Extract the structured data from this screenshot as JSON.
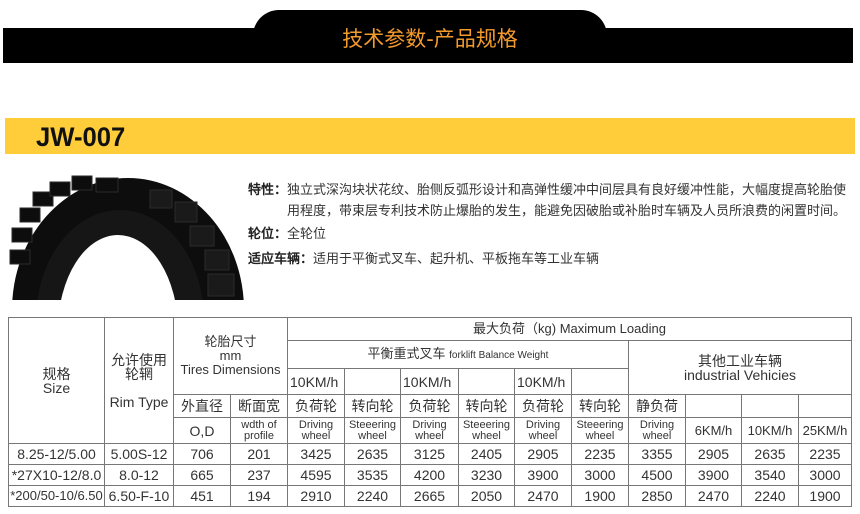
{
  "header": {
    "title": "技术参数-产品规格"
  },
  "product": {
    "model": "JW-007"
  },
  "features": [
    {
      "label": "特性：",
      "value": "独立式深沟块状花纹、胎侧反弧形设计和高弹性缓冲中间层具有良好缓冲性能，大幅度提高轮胎使用程度，带束层专利技术防止爆胎的发生，能避免因破胎或补胎时车辆及人员所浪费的闲置时间。"
    },
    {
      "label": "轮位：",
      "value": "全轮位"
    },
    {
      "label": "适应车辆：",
      "value": "适用于平衡式叉车、起升机、平板拖车等工业车辆"
    }
  ],
  "colors": {
    "header_bg": "#000000",
    "title": "#f39a2c",
    "band": "#ffcd3a"
  },
  "table": {
    "size_cn": "规格",
    "size_en": "Size",
    "rim_cn1": "允许使用",
    "rim_cn2": "轮辋",
    "rim_en": "Rim Type",
    "dim_cn": "轮胎尺寸",
    "dim_unit": "mm",
    "dim_en": "Tires Dimensions",
    "max_load": "最大负荷（kg) Maximum Loading",
    "forklift_cn": "平衡重式叉车",
    "forklift_en": "forklift Balance Weight",
    "other_cn": "其他工业车辆",
    "other_en": "industrial Vehicies",
    "speed_10": "10KM/h",
    "od_cn": "外直径",
    "width_cn": "断面宽",
    "drive_cn": "负荷轮",
    "steer_cn": "转向轮",
    "static_cn": "静负荷",
    "od_en": "O,D",
    "width_en": "wdth of profile",
    "drive_en": "Driving wheel",
    "steer_en": "Steeering wheel",
    "speed_6": "6KM/h",
    "speed_25": "25KM/h",
    "rows": [
      [
        "8.25-12/5.00",
        "5.00S-12",
        "706",
        "201",
        "3425",
        "2635",
        "3125",
        "2405",
        "2905",
        "2235",
        "3355",
        "2905",
        "2635",
        "2235"
      ],
      [
        "*27X10-12/8.0",
        "8.0-12",
        "665",
        "237",
        "4595",
        "3535",
        "4200",
        "3230",
        "3900",
        "3000",
        "4500",
        "3900",
        "3540",
        "3000"
      ],
      [
        "*200/50-10/6.50",
        "6.50-F-10",
        "451",
        "194",
        "2910",
        "2240",
        "2665",
        "2050",
        "2470",
        "1900",
        "2850",
        "2470",
        "2240",
        "1900"
      ]
    ]
  }
}
